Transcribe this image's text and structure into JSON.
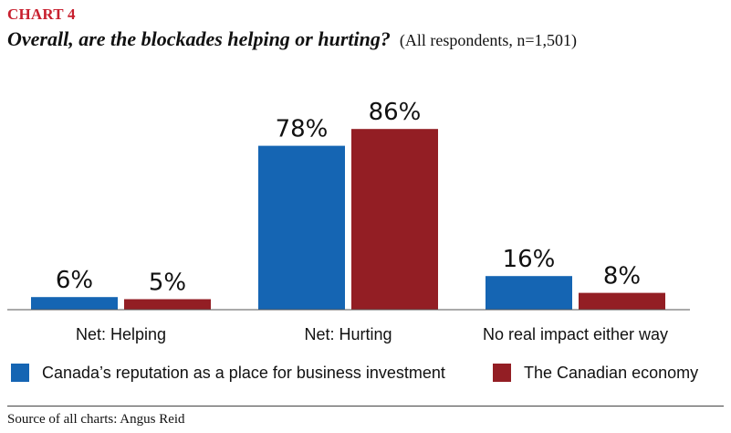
{
  "chart_label": "CHART 4",
  "title": "Overall, are the blockades helping or hurting?",
  "subtitle": "(All respondents, n=1,501)",
  "source": "Source of all charts: Angus Reid",
  "colors": {
    "accent_label": "#c8202f",
    "series_blue": "#1565b3",
    "series_red": "#931e24"
  },
  "chart_data": {
    "type": "bar",
    "categories": [
      "Net: Helping",
      "Net: Hurting",
      "No real impact either way"
    ],
    "series": [
      {
        "name": "Canada’s reputation as a place for business investment",
        "values": [
          6,
          78,
          16
        ],
        "labels": [
          "6%",
          "78%",
          "16%"
        ],
        "color": "#1565b3"
      },
      {
        "name": "The Canadian economy",
        "values": [
          5,
          86,
          8
        ],
        "labels": [
          "5%",
          "86%",
          "8%"
        ],
        "color": "#931e24"
      }
    ],
    "ylim": [
      0,
      100
    ],
    "grid": false,
    "legend": "bottom",
    "xlabel": "",
    "ylabel": ""
  }
}
